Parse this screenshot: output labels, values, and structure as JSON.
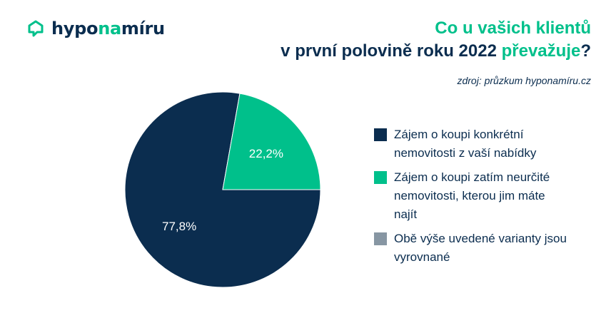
{
  "logo": {
    "text_dark_1": "hypo",
    "text_green": "na",
    "text_dark_2": "míru"
  },
  "title": {
    "line1": "Co u vašich klientů",
    "line2_main": "v první polovině roku 2022 ",
    "line2_accent": "převažuje",
    "line2_end": "?"
  },
  "source": "zdroj: průzkum hyponamíru.cz",
  "colors": {
    "dark": "#0b2d4f",
    "green": "#00c08b",
    "gray": "#8796a3"
  },
  "chart_data": {
    "type": "pie",
    "slices": [
      {
        "label": "Zájem o koupi konkrétní nemovitosti z vaší nabídky",
        "value": 77.8,
        "display": "77,8%",
        "color": "#0b2d4f"
      },
      {
        "label": "Zájem o koupi zatím neurčité nemovitosti, kterou jim máte najít",
        "value": 22.2,
        "display": "22,2%",
        "color": "#00c08b"
      },
      {
        "label": "Obě výše uvedené varianty jsou vyrovnané",
        "value": 0,
        "display": "",
        "color": "#8796a3"
      }
    ],
    "legend_position": "right"
  },
  "legend": {
    "items": [
      {
        "lines": [
          "Zájem o koupi konkrétní",
          "nemovitosti z vaší nabídky"
        ],
        "color": "#0b2d4f"
      },
      {
        "lines": [
          "Zájem o koupi zatím neurčité",
          "nemovitosti, kterou jim máte",
          "najít"
        ],
        "color": "#00c08b"
      },
      {
        "lines": [
          "Obě výše uvedené varianty jsou",
          "vyrovnané"
        ],
        "color": "#8796a3"
      }
    ]
  }
}
